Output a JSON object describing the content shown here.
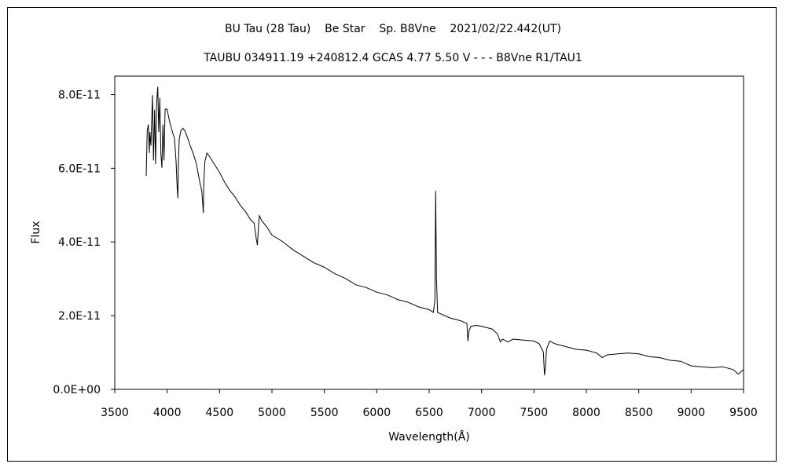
{
  "chart_data": {
    "type": "line",
    "title": "BU Tau (28 Tau)    Be Star    Sp. B8Vne    2021/02/22.442(UT)",
    "subtitle": "TAUBU 034911.19 +240812.4 GCAS 4.77 5.50 V - - - B8Vne R1/TAU1",
    "xlabel": "Wavelength(Å)",
    "ylabel": "Flux",
    "xlim": [
      3500,
      9500
    ],
    "ylim": [
      0,
      8.5e-11
    ],
    "x_ticks": [
      3500,
      4000,
      4500,
      5000,
      5500,
      6000,
      6500,
      7000,
      7500,
      8000,
      8500,
      9000,
      9500
    ],
    "x_tick_labels": [
      "3500",
      "4000",
      "4500",
      "5000",
      "5500",
      "6000",
      "6500",
      "7000",
      "7500",
      "8000",
      "8500",
      "9000",
      "9500"
    ],
    "y_ticks": [
      0,
      2e-11,
      4e-11,
      6e-11,
      8e-11
    ],
    "y_tick_labels": [
      "0.0E+00",
      "2.0E-11",
      "4.0E-11",
      "6.0E-11",
      "8.0E-11"
    ],
    "grid": false,
    "line_color": "#000000",
    "series": [
      {
        "x": [
          3800,
          3810,
          3820,
          3830,
          3835,
          3845,
          3860,
          3870,
          3880,
          3889,
          3900,
          3910,
          3920,
          3930,
          3940,
          3950,
          3960,
          3970,
          3980,
          3990,
          4000,
          4020,
          4050,
          4070,
          4085,
          4095,
          4102,
          4108,
          4115,
          4130,
          4150,
          4170,
          4200,
          4220,
          4250,
          4280,
          4300,
          4320,
          4330,
          4340,
          4345,
          4350,
          4360,
          4380,
          4400,
          4450,
          4500,
          4550,
          4600,
          4650,
          4700,
          4750,
          4800,
          4830,
          4850,
          4861,
          4870,
          4880,
          4900,
          4950,
          5000,
          5100,
          5200,
          5300,
          5400,
          5500,
          5600,
          5700,
          5800,
          5900,
          6000,
          6100,
          6200,
          6300,
          6400,
          6500,
          6540,
          6555,
          6562,
          6570,
          6580,
          6600,
          6700,
          6800,
          6860,
          6870,
          6880,
          6900,
          6950,
          7000,
          7100,
          7150,
          7180,
          7200,
          7250,
          7300,
          7400,
          7500,
          7550,
          7590,
          7600,
          7610,
          7620,
          7650,
          7700,
          7800,
          7900,
          8000,
          8100,
          8150,
          8200,
          8300,
          8400,
          8500,
          8600,
          8700,
          8800,
          8900,
          9000,
          9100,
          9200,
          9300,
          9400,
          9450,
          9500
        ],
        "y": [
          5.8e-11,
          7e-11,
          7.2e-11,
          6.4e-11,
          7e-11,
          6.6e-11,
          8e-11,
          6.2e-11,
          7.6e-11,
          6.1e-11,
          7.8e-11,
          8.2e-11,
          7e-11,
          7.9e-11,
          6.4e-11,
          6e-11,
          7.2e-11,
          6.2e-11,
          7.6e-11,
          7.6e-11,
          7.6e-11,
          7.3e-11,
          7e-11,
          6.8e-11,
          6.2e-11,
          5.5e-11,
          5.2e-11,
          6.2e-11,
          6.8e-11,
          7e-11,
          7.1e-11,
          7e-11,
          6.8e-11,
          6.6e-11,
          6.4e-11,
          6.1e-11,
          5.8e-11,
          5.5e-11,
          5.4e-11,
          5e-11,
          4.8e-11,
          5.6e-11,
          6.2e-11,
          6.4e-11,
          6.35e-11,
          6.1e-11,
          5.9e-11,
          5.6e-11,
          5.4e-11,
          5.2e-11,
          5e-11,
          4.8e-11,
          4.6e-11,
          4.5e-11,
          4.1e-11,
          3.9e-11,
          4.4e-11,
          4.7e-11,
          4.6e-11,
          4.4e-11,
          4.2e-11,
          4e-11,
          3.8e-11,
          3.6e-11,
          3.45e-11,
          3.3e-11,
          3.15e-11,
          3e-11,
          2.85e-11,
          2.75e-11,
          2.65e-11,
          2.55e-11,
          2.45e-11,
          2.35e-11,
          2.25e-11,
          2.15e-11,
          2.1e-11,
          2.4e-11,
          5.4e-11,
          3e-11,
          2.1e-11,
          2.05e-11,
          1.95e-11,
          1.85e-11,
          1.8e-11,
          1.3e-11,
          1.6e-11,
          1.7e-11,
          1.75e-11,
          1.7e-11,
          1.65e-11,
          1.5e-11,
          1.3e-11,
          1.35e-11,
          1.3e-11,
          1.35e-11,
          1.35e-11,
          1.3e-11,
          1.25e-11,
          1e-11,
          4e-12,
          6e-12,
          1.1e-11,
          1.3e-11,
          1.25e-11,
          1.15e-11,
          1.1e-11,
          1.05e-11,
          1e-11,
          8.5e-12,
          9.5e-12,
          9.5e-12,
          1e-11,
          9.5e-12,
          9e-12,
          8.5e-12,
          8e-12,
          7.5e-12,
          6.5e-12,
          6e-12,
          6e-12,
          6e-12,
          5.5e-12,
          4e-12,
          5.5e-12
        ]
      }
    ]
  }
}
